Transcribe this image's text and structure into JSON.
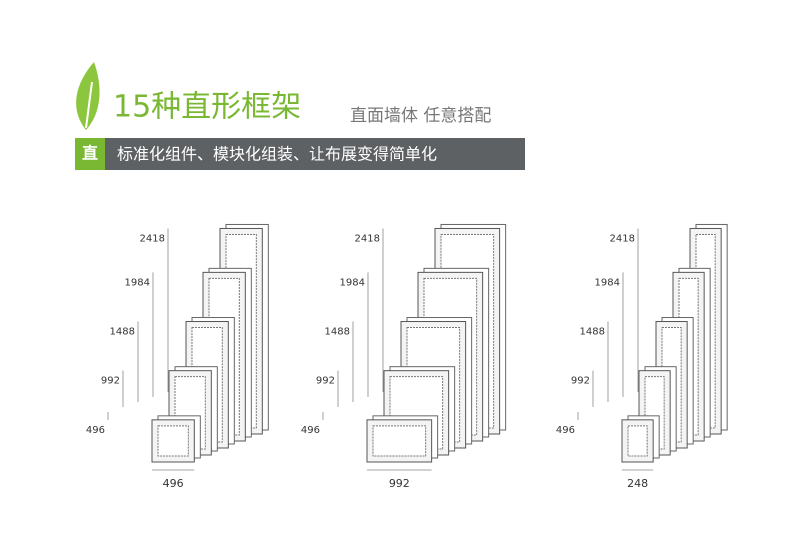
{
  "title": "15种直形框架",
  "subtitle": "直面墙体 任意搭配",
  "banner": {
    "badge": "直",
    "text": "标准化组件、模块化组装、让布展变得简单化"
  },
  "groups": [
    {
      "heights": [
        496,
        992,
        1488,
        1984,
        2418
      ],
      "width": 496
    },
    {
      "heights": [
        496,
        992,
        1488,
        1984,
        2418
      ],
      "width": 992
    },
    {
      "heights": [
        496,
        992,
        1488,
        1984,
        2418
      ],
      "width": 248
    }
  ]
}
